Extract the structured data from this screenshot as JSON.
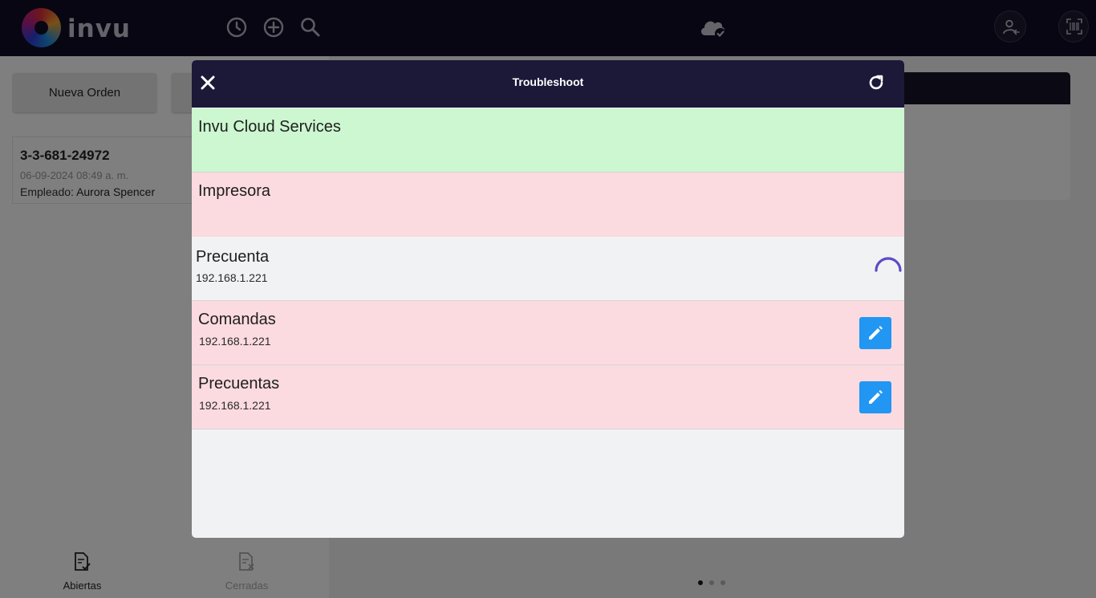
{
  "app": {
    "brand": "invu"
  },
  "colors": {
    "topbar": "#0f0c24",
    "modal_header": "#1b1838",
    "ok_row": "#ccf7d0",
    "error_row": "#fbdbe0",
    "pending_row": "#f1f2f4",
    "edit_button": "#2196f3",
    "spinner": "#5b4cc4"
  },
  "topbar": {
    "icons": [
      "history-icon",
      "add-circle-icon",
      "search-icon",
      "cloud-check-icon",
      "user-switch-icon",
      "barcode-scan-icon"
    ]
  },
  "background": {
    "new_order_label": "Nueva Orden",
    "order": {
      "id": "3-3-681-24972",
      "date": "06-09-2024 08:49 a. m.",
      "employee_label": "Empleado:",
      "employee_name": "Aurora Spencer"
    },
    "tabs": [
      {
        "label": "Abiertas",
        "active": true
      },
      {
        "label": "Cerradas",
        "active": false
      }
    ],
    "pager": {
      "pages": 3,
      "current": 1
    }
  },
  "modal": {
    "title": "Troubleshoot",
    "items": [
      {
        "title": "Invu Cloud Services",
        "subtitle": "",
        "status": "ok"
      },
      {
        "title": "Impresora",
        "subtitle": "",
        "status": "error"
      },
      {
        "title": "Precuenta",
        "subtitle": "192.168.1.221",
        "status": "loading"
      },
      {
        "title": "Comandas",
        "subtitle": "192.168.1.221",
        "status": "error",
        "editable": true
      },
      {
        "title": "Precuentas",
        "subtitle": "192.168.1.221",
        "status": "error",
        "editable": true
      }
    ]
  }
}
